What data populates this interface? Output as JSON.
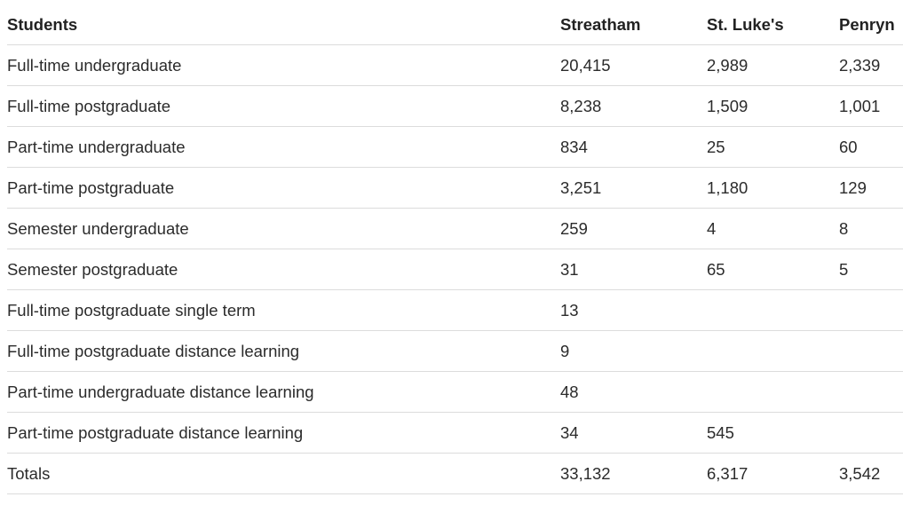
{
  "table": {
    "headers": [
      "Students",
      "Streatham",
      "St. Luke's",
      "Penryn"
    ],
    "rows": [
      [
        "Full-time undergraduate",
        "20,415",
        "2,989",
        "2,339"
      ],
      [
        "Full-time postgraduate",
        "8,238",
        "1,509",
        "1,001"
      ],
      [
        "Part-time undergraduate",
        "834",
        "25",
        "60"
      ],
      [
        "Part-time postgraduate",
        "3,251",
        "1,180",
        "129"
      ],
      [
        "Semester undergraduate",
        "259",
        "4",
        "8"
      ],
      [
        "Semester postgraduate",
        "31",
        "65",
        "5"
      ],
      [
        "Full-time postgraduate single term",
        "13",
        "",
        ""
      ],
      [
        "Full-time postgraduate distance learning",
        "9",
        "",
        ""
      ],
      [
        "Part-time undergraduate distance learning",
        "48",
        "",
        ""
      ],
      [
        "Part-time postgraduate distance learning",
        "34",
        "545",
        ""
      ],
      [
        "Totals",
        "33,132",
        "6,317",
        "3,542"
      ]
    ]
  }
}
